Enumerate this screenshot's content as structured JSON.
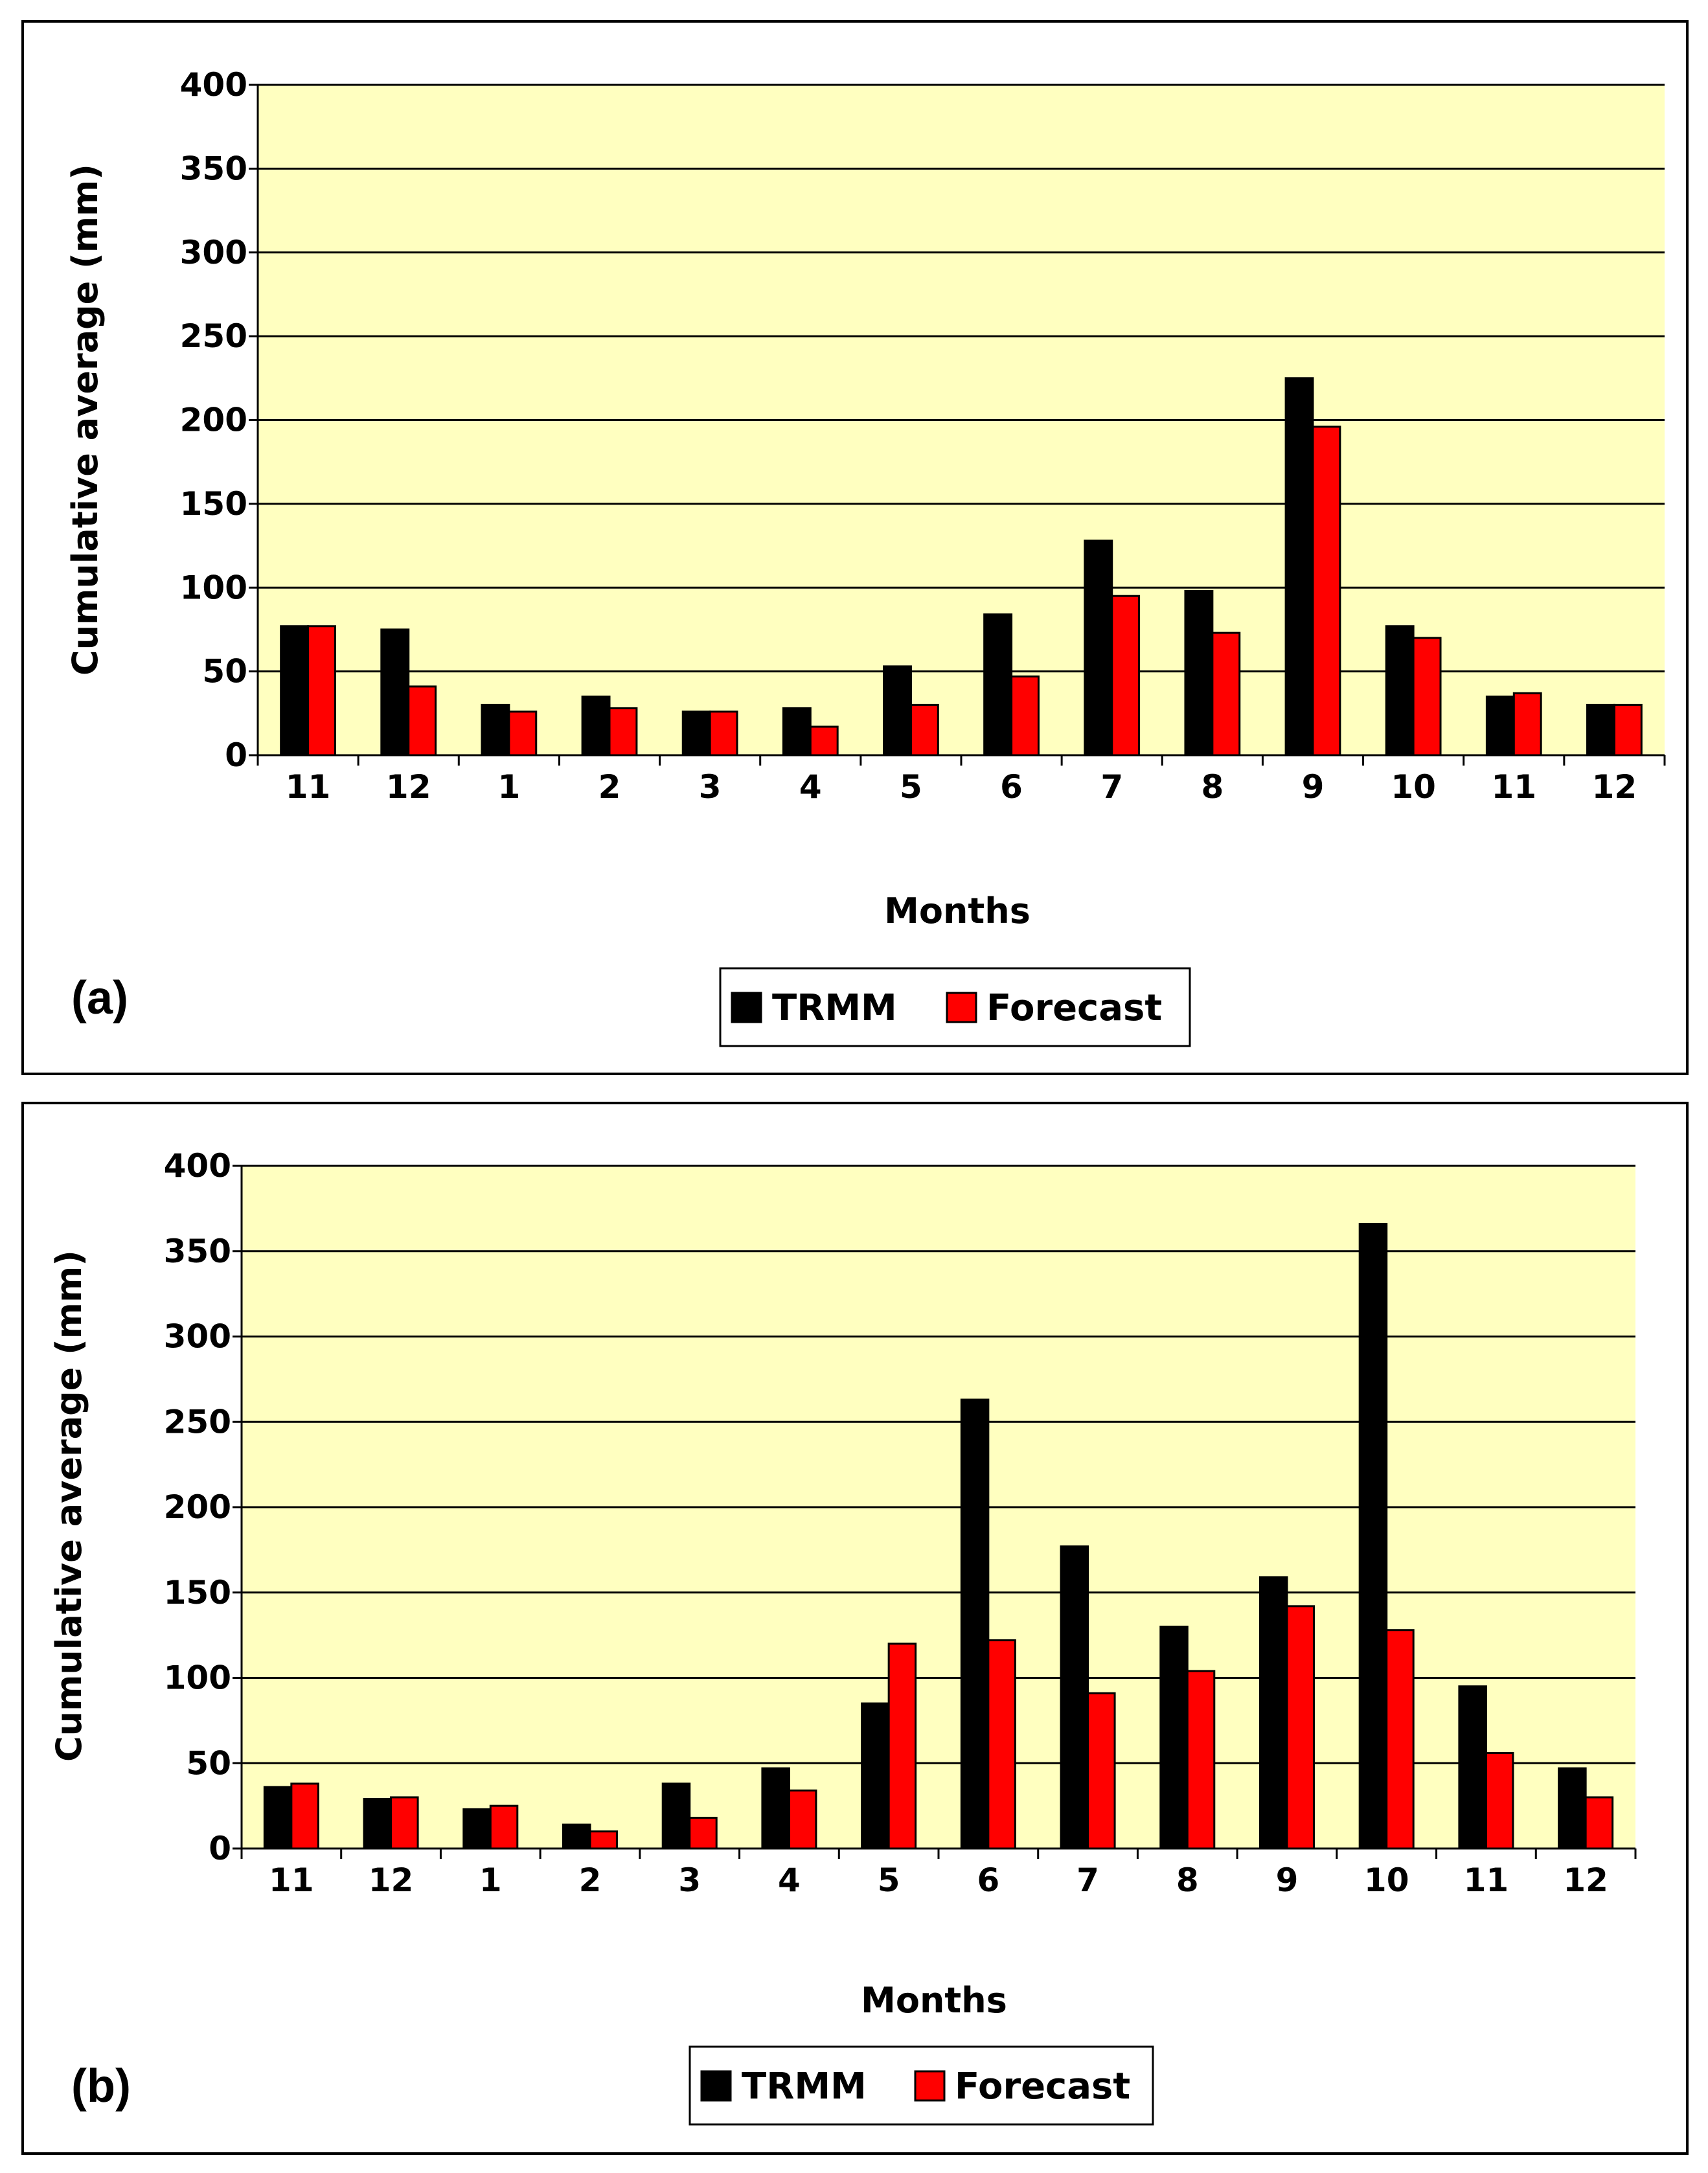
{
  "chart_data": [
    {
      "type": "bar",
      "panel_label": "(a)",
      "categories": [
        "11",
        "12",
        "1",
        "2",
        "3",
        "4",
        "5",
        "6",
        "7",
        "8",
        "9",
        "10",
        "11",
        "12"
      ],
      "series": [
        {
          "name": "TRMM",
          "color": "#000000",
          "values": [
            77,
            75,
            30,
            35,
            26,
            28,
            53,
            84,
            128,
            98,
            225,
            77,
            35,
            30
          ]
        },
        {
          "name": "Forecast",
          "color": "#ff0000",
          "values": [
            77,
            41,
            26,
            28,
            26,
            17,
            30,
            47,
            95,
            73,
            196,
            70,
            37,
            30
          ]
        }
      ],
      "xlabel": "Months",
      "ylabel": "Cumulative average (mm)",
      "ylim": [
        0,
        400
      ],
      "yticks": [
        "0",
        "50",
        "100",
        "150",
        "200",
        "250",
        "300",
        "350",
        "400"
      ],
      "grid": true,
      "plot_background": "#ffffc0",
      "legend_position": "bottom-center"
    },
    {
      "type": "bar",
      "panel_label": "(b)",
      "categories": [
        "11",
        "12",
        "1",
        "2",
        "3",
        "4",
        "5",
        "6",
        "7",
        "8",
        "9",
        "10",
        "11",
        "12"
      ],
      "series": [
        {
          "name": "TRMM",
          "color": "#000000",
          "values": [
            36,
            29,
            23,
            14,
            38,
            47,
            85,
            263,
            177,
            130,
            159,
            366,
            95,
            47
          ]
        },
        {
          "name": "Forecast",
          "color": "#ff0000",
          "values": [
            38,
            30,
            25,
            10,
            18,
            34,
            120,
            122,
            91,
            104,
            142,
            128,
            56,
            30
          ]
        }
      ],
      "xlabel": "Months",
      "ylabel": "Cumulative average (mm)",
      "ylim": [
        0,
        400
      ],
      "yticks": [
        "0",
        "50",
        "100",
        "150",
        "200",
        "250",
        "300",
        "350",
        "400"
      ],
      "grid": true,
      "plot_background": "#ffffc0",
      "legend_position": "bottom-center"
    }
  ]
}
